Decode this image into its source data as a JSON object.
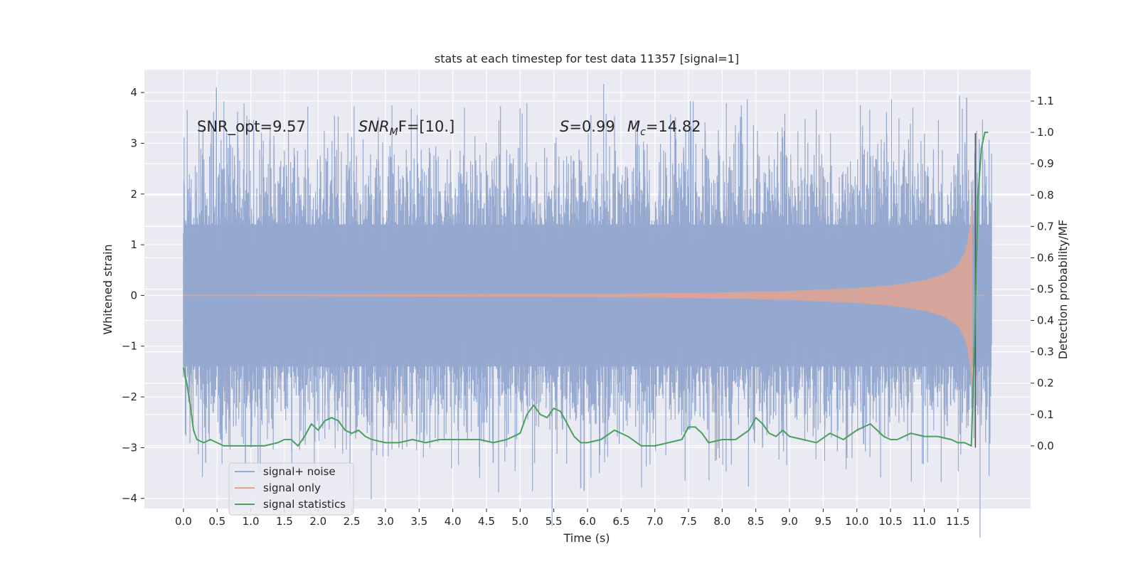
{
  "chart_data": {
    "type": "line",
    "title": "stats at each timestep for test data 11357 [signal=1]",
    "xlabel": "Time (s)",
    "ylabel": "Whitened strain",
    "ylabel_right": "Detection probability/MF",
    "xlim": [
      -0.58,
      12.58
    ],
    "ylim": [
      -4.2,
      4.45
    ],
    "ylim_right": [
      -0.2,
      1.2
    ],
    "x_ticks": [
      0.0,
      0.5,
      1.0,
      1.5,
      2.0,
      2.5,
      3.0,
      3.5,
      4.0,
      4.5,
      5.0,
      5.5,
      6.0,
      6.5,
      7.0,
      7.5,
      8.0,
      8.5,
      9.0,
      9.5,
      10.0,
      10.5,
      11.0,
      11.5
    ],
    "x_tick_labels": [
      "0.0",
      "0.5",
      "1.0",
      "1.5",
      "2.0",
      "2.5",
      "3.0",
      "3.5",
      "4.0",
      "4.5",
      "5.0",
      "5.5",
      "6.0",
      "6.5",
      "7.0",
      "7.5",
      "8.0",
      "8.5",
      "9.0",
      "9.5",
      "10.0",
      "10.5",
      "11.0",
      "11.5"
    ],
    "y_ticks": [
      4,
      3,
      2,
      1,
      0,
      -1,
      -2,
      -3,
      -4
    ],
    "y_tick_labels": [
      "4",
      "3",
      "2",
      "1",
      "0",
      "−1",
      "−2",
      "−3",
      "−4"
    ],
    "y_right_ticks": [
      1.1,
      1.0,
      0.9,
      0.8,
      0.7,
      0.6,
      0.5,
      0.4,
      0.3,
      0.2,
      0.1,
      0.0
    ],
    "y_right_tick_labels": [
      "1.1",
      "1.0",
      "0.9",
      "0.8",
      "0.7",
      "0.6",
      "0.5",
      "0.4",
      "0.3",
      "0.2",
      "0.1",
      "0.0"
    ],
    "grid": true,
    "legend": "lower-left",
    "annotations": {
      "snr_opt": "SNR_opt=9.57",
      "snr_mf_main": "SNR",
      "snr_mf_sub": "M",
      "snr_mf_rest": "F=[10.]",
      "s_main": "S",
      "s_rest": "=0.99",
      "mc_main": "M",
      "mc_sub": "c",
      "mc_rest": "=14.82"
    },
    "series": [
      {
        "name": "signal+ noise",
        "color": "#95a8cf",
        "axis": "left",
        "x_range": [
          0.0,
          12.0
        ],
        "typical_envelope": [
          -2.0,
          2.0
        ],
        "y_max": 4.1,
        "y_min": -3.85
      },
      {
        "name": "signal only",
        "color": "#e0a592",
        "axis": "left",
        "x_range": [
          0.0,
          11.9
        ],
        "amplitude_points": [
          [
            0.0,
            0.01
          ],
          [
            6.0,
            0.03
          ],
          [
            8.0,
            0.06
          ],
          [
            9.0,
            0.09
          ],
          [
            10.0,
            0.15
          ],
          [
            10.5,
            0.2
          ],
          [
            11.0,
            0.3
          ],
          [
            11.3,
            0.42
          ],
          [
            11.5,
            0.6
          ],
          [
            11.6,
            0.85
          ],
          [
            11.65,
            1.1
          ],
          [
            11.7,
            1.6
          ]
        ]
      },
      {
        "name": "signal statistics",
        "color": "#4aa05e",
        "axis": "right",
        "x": [
          0.0,
          0.05,
          0.1,
          0.15,
          0.2,
          0.3,
          0.4,
          0.6,
          0.8,
          1.0,
          1.2,
          1.4,
          1.5,
          1.6,
          1.7,
          1.8,
          1.9,
          2.0,
          2.1,
          2.2,
          2.3,
          2.4,
          2.5,
          2.6,
          2.7,
          2.8,
          3.0,
          3.2,
          3.4,
          3.6,
          3.8,
          4.0,
          4.2,
          4.4,
          4.6,
          4.8,
          5.0,
          5.1,
          5.2,
          5.3,
          5.4,
          5.5,
          5.6,
          5.7,
          5.8,
          5.9,
          6.0,
          6.2,
          6.4,
          6.6,
          6.8,
          7.0,
          7.2,
          7.4,
          7.5,
          7.6,
          7.7,
          7.8,
          8.0,
          8.2,
          8.4,
          8.5,
          8.6,
          8.7,
          8.8,
          8.9,
          9.0,
          9.2,
          9.4,
          9.6,
          9.8,
          10.0,
          10.2,
          10.4,
          10.5,
          10.6,
          10.8,
          11.0,
          11.2,
          11.4,
          11.5,
          11.6,
          11.7,
          11.75,
          11.8,
          11.85,
          11.9,
          11.95
        ],
        "y": [
          0.25,
          0.2,
          0.13,
          0.05,
          0.02,
          0.01,
          0.02,
          0.0,
          0.0,
          0.0,
          0.0,
          0.01,
          0.02,
          0.02,
          0.0,
          0.03,
          0.07,
          0.05,
          0.08,
          0.09,
          0.08,
          0.05,
          0.04,
          0.05,
          0.03,
          0.02,
          0.01,
          0.01,
          0.02,
          0.01,
          0.02,
          0.02,
          0.02,
          0.02,
          0.01,
          0.02,
          0.04,
          0.1,
          0.13,
          0.1,
          0.09,
          0.12,
          0.11,
          0.07,
          0.03,
          0.01,
          0.01,
          0.02,
          0.05,
          0.03,
          0.0,
          0.0,
          0.01,
          0.02,
          0.06,
          0.06,
          0.04,
          0.01,
          0.02,
          0.02,
          0.05,
          0.09,
          0.07,
          0.04,
          0.03,
          0.05,
          0.03,
          0.02,
          0.01,
          0.04,
          0.02,
          0.05,
          0.07,
          0.03,
          0.02,
          0.02,
          0.04,
          0.03,
          0.03,
          0.02,
          0.01,
          0.01,
          0.0,
          0.35,
          0.8,
          0.95,
          1.0,
          1.0
        ]
      }
    ]
  }
}
